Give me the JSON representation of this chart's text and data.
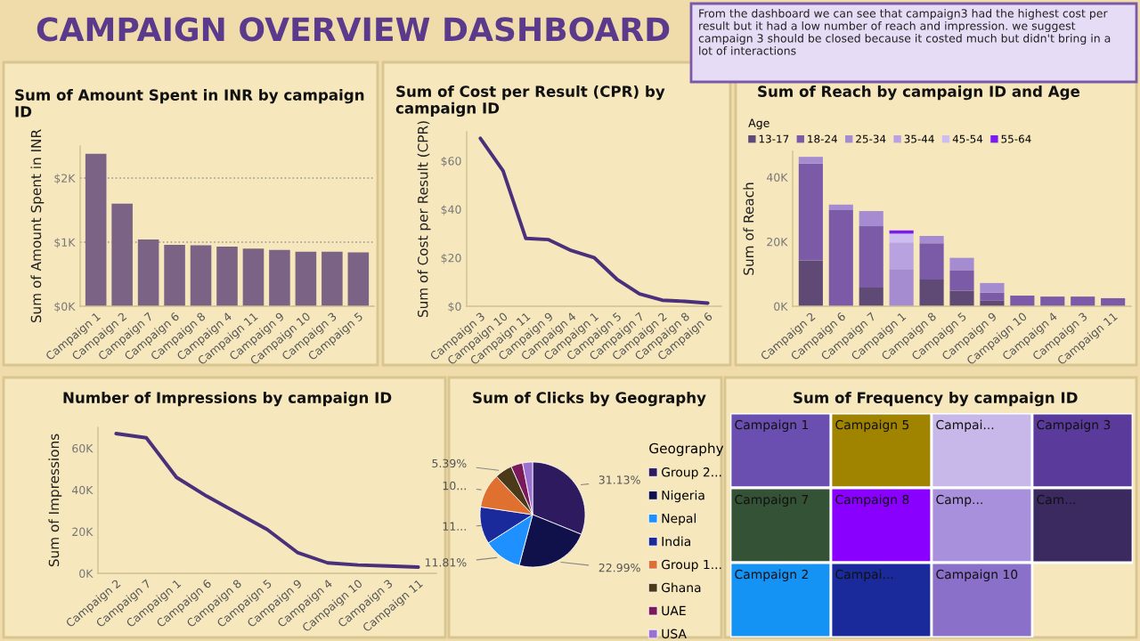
{
  "chart_data": [
    {
      "type": "other",
      "title": "CAMPAIGN OVERVIEW DASHBOARD",
      "annotations": [
        "From the dashboard we can see that campaign3 had the highest cost per result but it had a low number of reach and impression. we suggest campaign 3 should be closed because it costed much but didn't bring in a lot of interactions"
      ]
    },
    {
      "type": "bar",
      "title": "Sum of Amount Spent in INR by campaign ID",
      "ylabel": "Sum of Amount Spent in INR",
      "categories": [
        "Campaign 1",
        "Campaign 2",
        "Campaign 7",
        "Campaign 6",
        "Campaign 8",
        "Campaign 4",
        "Campaign 11",
        "Campaign 9",
        "Campaign 10",
        "Campaign 3",
        "Campaign 5"
      ],
      "values": [
        2380,
        1600,
        1040,
        960,
        950,
        930,
        900,
        880,
        850,
        850,
        840
      ],
      "color": "#7a6385",
      "ylim": [
        0,
        2500
      ],
      "yticks": [
        {
          "value": 0,
          "label": "$0K"
        },
        {
          "value": 1000,
          "label": "$1K"
        },
        {
          "value": 2000,
          "label": "$2K"
        }
      ],
      "grid": "y"
    },
    {
      "type": "line",
      "title": "Sum of Cost per Result (CPR) by campaign ID",
      "ylabel": "Sum of Cost per Result (CPR)",
      "categories": [
        "Campaign 3",
        "Campaign 10",
        "Campaign 11",
        "Campaign 9",
        "Campaign 4",
        "Campaign 1",
        "Campaign 5",
        "Campaign 7",
        "Campaign 2",
        "Campaign 8",
        "Campaign 6"
      ],
      "values": [
        69.3,
        55.9,
        28,
        27.5,
        23,
        20.1,
        11.2,
        5.1,
        2.5,
        2,
        1.3
      ],
      "color": "#4a2f7a",
      "ylim": [
        0,
        72
      ],
      "yticks": [
        {
          "value": 0,
          "label": "$0"
        },
        {
          "value": 20,
          "label": "$20"
        },
        {
          "value": 40,
          "label": "$40"
        },
        {
          "value": 60,
          "label": "$60"
        }
      ]
    },
    {
      "type": "bar",
      "stacked": true,
      "title": "Sum of Reach by campaign ID and Age",
      "ylabel": "Sum of Reach",
      "legend_title": "Age",
      "legend": "top left",
      "categories": [
        "Campaign 2",
        "Campaign 6",
        "Campaign 7",
        "Campaign 1",
        "Campaign 8",
        "Campaign 5",
        "Campaign 9",
        "Campaign 10",
        "Campaign 4",
        "Campaign 3",
        "Campaign 11"
      ],
      "series": [
        {
          "name": "13-17",
          "color": "#5e4a75",
          "values": [
            14200,
            null,
            5800,
            null,
            8300,
            4800,
            1700,
            null,
            null,
            null,
            null
          ]
        },
        {
          "name": "18-24",
          "color": "#7b5ba8",
          "values": [
            30000,
            29800,
            19000,
            null,
            11200,
            6400,
            2500,
            3300,
            3000,
            3000,
            2500
          ]
        },
        {
          "name": "25-34",
          "color": "#a58bcf",
          "values": [
            2100,
            1700,
            4700,
            11500,
            2300,
            3800,
            3000,
            null,
            null,
            null,
            null
          ]
        },
        {
          "name": "35-44",
          "color": "#b9a2e0",
          "values": [
            null,
            null,
            null,
            8300,
            null,
            null,
            null,
            null,
            null,
            null,
            null
          ]
        },
        {
          "name": "45-54",
          "color": "#cdbdf0",
          "values": [
            null,
            null,
            null,
            2700,
            null,
            null,
            null,
            null,
            null,
            null,
            null
          ]
        },
        {
          "name": "55-64",
          "color": "#7a1cf0",
          "values": [
            null,
            null,
            null,
            1000,
            null,
            null,
            null,
            null,
            null,
            null,
            null
          ]
        }
      ],
      "ylim": [
        0,
        48000
      ],
      "yticks": [
        {
          "value": 0,
          "label": "0K"
        },
        {
          "value": 20000,
          "label": "20K"
        },
        {
          "value": 40000,
          "label": "40K"
        }
      ]
    },
    {
      "type": "line",
      "title": "Number of Impressions by campaign ID",
      "ylabel": "Sum of Impressions",
      "categories": [
        "Campaign 2",
        "Campaign 7",
        "Campaign 1",
        "Campaign 6",
        "Campaign 8",
        "Campaign 5",
        "Campaign 9",
        "Campaign 4",
        "Campaign 10",
        "Campaign 3",
        "Campaign 11"
      ],
      "values": [
        67000,
        65000,
        46000,
        37000,
        29000,
        21000,
        10000,
        5000,
        4000,
        3500,
        3000
      ],
      "color": "#4a2f7a",
      "ylim": [
        0,
        70000
      ],
      "yticks": [
        {
          "value": 0,
          "label": "0K"
        },
        {
          "value": 20000,
          "label": "20K"
        },
        {
          "value": 40000,
          "label": "40K"
        },
        {
          "value": 60000,
          "label": "60K"
        }
      ]
    },
    {
      "type": "pie",
      "title": "Sum of Clicks by Geography",
      "legend_title": "Geography",
      "legend": "right",
      "categories": [
        "Group 2...",
        "Nigeria",
        "Nepal",
        "India",
        "Group 1...",
        "Ghana",
        "UAE",
        "USA"
      ],
      "values": [
        31.13,
        22.99,
        11.81,
        11.4,
        10.6,
        5.39,
        3.6,
        3.08
      ],
      "colors": [
        "#2e1a5e",
        "#10104a",
        "#1e90ff",
        "#1a2a9a",
        "#e07030",
        "#4a3a1a",
        "#7a1a5a",
        "#9a70d0"
      ],
      "value_labels": [
        "31.13%",
        "22.99%",
        "11.81%",
        "11...",
        "10...",
        "5.39%",
        null,
        null
      ]
    },
    {
      "type": "other",
      "title": "Sum of Frequency by campaign ID",
      "categories": [
        "Campaign 1",
        "Campaign 7",
        "Campaign 2",
        "Campaign 5",
        "Campaign 8",
        "Campai...",
        "Campai...",
        "Camp...",
        "Campaign 10",
        "Campaign 3",
        "Cam..."
      ],
      "colors": [
        "#6a4fb0",
        "#345235",
        "#1593f5",
        "#a08400",
        "#8a00ff",
        "#1a2a9a",
        "#c8b8ea",
        "#a890dc",
        "#8a70c8",
        "#5a3a9a",
        "#3a2a60"
      ]
    }
  ]
}
